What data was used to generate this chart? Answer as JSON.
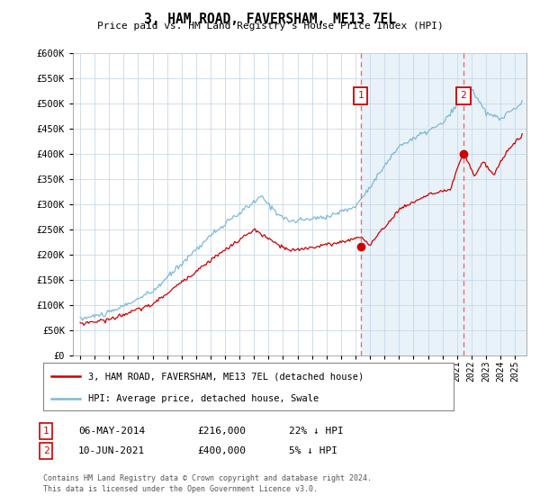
{
  "title": "3, HAM ROAD, FAVERSHAM, ME13 7EL",
  "subtitle": "Price paid vs. HM Land Registry's House Price Index (HPI)",
  "hpi_color": "#7db9d8",
  "price_color": "#cc0000",
  "hpi_fill_color": "#daeaf4",
  "marker1_date": 2014.35,
  "marker1_price": 216000,
  "marker1_date_str": "06-MAY-2014",
  "marker1_pct": "22% ↓ HPI",
  "marker2_date": 2021.44,
  "marker2_price": 400000,
  "marker2_date_str": "10-JUN-2021",
  "marker2_pct": "5% ↓ HPI",
  "legend_line1": "3, HAM ROAD, FAVERSHAM, ME13 7EL (detached house)",
  "legend_line2": "HPI: Average price, detached house, Swale",
  "footer1": "Contains HM Land Registry data © Crown copyright and database right 2024.",
  "footer2": "This data is licensed under the Open Government Licence v3.0.",
  "ylim_min": 0,
  "ylim_max": 600000,
  "xlim_min": 1994.5,
  "xlim_max": 2025.8,
  "bg_color": "#ffffff",
  "grid_color": "#c8d8e8",
  "marker_color": "#cc0000"
}
